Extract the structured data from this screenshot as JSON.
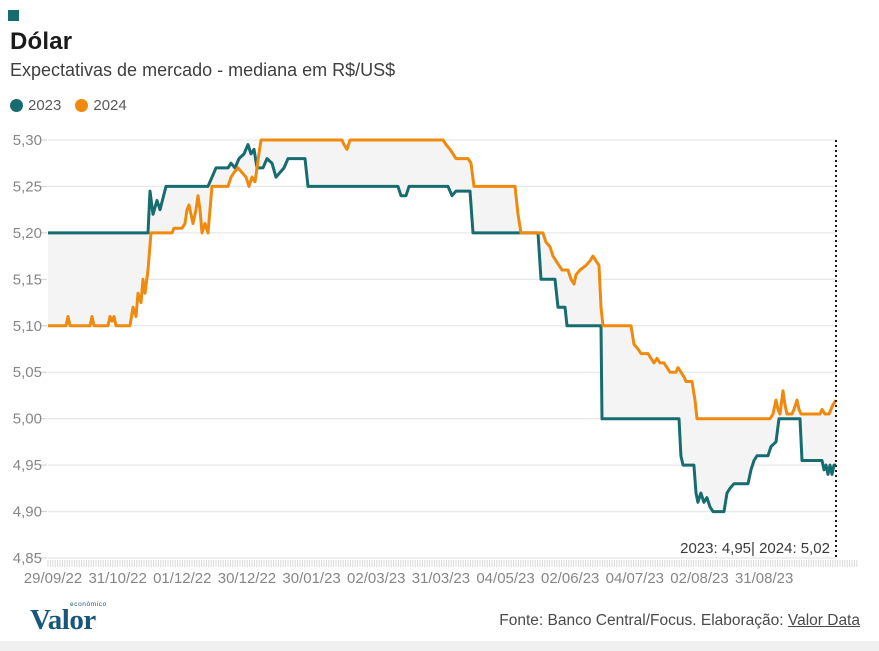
{
  "header": {
    "title": "Dólar",
    "subtitle": "Expectativas de mercado - mediana em R$/US$"
  },
  "legend": [
    {
      "label": "2023",
      "color": "#176C70"
    },
    {
      "label": "2024",
      "color": "#EF8A0E"
    }
  ],
  "footer": {
    "logo": "Valor",
    "logo_small": "econômico",
    "source_text": "Fonte: Banco Central/Focus. Elaboração: ",
    "source_link": "Valor Data"
  },
  "chart_data": {
    "type": "line",
    "title": "Dólar - Expectativas de mercado - mediana em R$/US$",
    "xlabel": "",
    "ylabel": "",
    "ylim": [
      4.85,
      5.3
    ],
    "grid": "horizontal",
    "legend_position": "top-left",
    "band_fill": "#f4f4f4",
    "annotation": "2023: 4,95|  2024: 5,02",
    "end_values": {
      "2023": 4.95,
      "2024": 5.02
    },
    "x_unit": "fraction of x-axis, 0 = 29/09/22, 1 = latest data point (dotted marker)",
    "x_tick_labels": [
      "29/09/22",
      "31/10/22",
      "01/12/22",
      "30/12/22",
      "30/01/23",
      "02/03/23",
      "31/03/23",
      "04/05/23",
      "02/06/23",
      "04/07/23",
      "02/08/23",
      "31/08/23"
    ],
    "y_ticks": {
      "values": [
        5.3,
        5.25,
        5.2,
        5.15,
        5.1,
        5.05,
        5.0,
        4.95,
        4.9,
        4.85
      ],
      "labels": [
        "5,30",
        "5,25",
        "5,20",
        "5,15",
        "5,10",
        "5,05",
        "5,00",
        "4,95",
        "4,90",
        "4,85"
      ]
    },
    "series": [
      {
        "name": "2023",
        "color": "#176C70",
        "points": [
          [
            0,
            5.2
          ],
          [
            0.1269,
            5.2
          ],
          [
            0.1294,
            5.245
          ],
          [
            0.1332,
            5.22
          ],
          [
            0.1383,
            5.235
          ],
          [
            0.1421,
            5.225
          ],
          [
            0.1497,
            5.25
          ],
          [
            0.203,
            5.25
          ],
          [
            0.2081,
            5.26
          ],
          [
            0.2132,
            5.27
          ],
          [
            0.2284,
            5.27
          ],
          [
            0.2322,
            5.275
          ],
          [
            0.2373,
            5.27
          ],
          [
            0.2424,
            5.28
          ],
          [
            0.2487,
            5.285
          ],
          [
            0.2538,
            5.295
          ],
          [
            0.2576,
            5.285
          ],
          [
            0.2614,
            5.29
          ],
          [
            0.2652,
            5.27
          ],
          [
            0.2728,
            5.27
          ],
          [
            0.2779,
            5.28
          ],
          [
            0.2843,
            5.275
          ],
          [
            0.2893,
            5.26
          ],
          [
            0.2944,
            5.265
          ],
          [
            0.2995,
            5.27
          ],
          [
            0.3046,
            5.28
          ],
          [
            0.3261,
            5.28
          ],
          [
            0.3299,
            5.25
          ],
          [
            0.4442,
            5.25
          ],
          [
            0.448,
            5.24
          ],
          [
            0.4543,
            5.24
          ],
          [
            0.4581,
            5.25
          ],
          [
            0.5076,
            5.25
          ],
          [
            0.5127,
            5.24
          ],
          [
            0.5178,
            5.245
          ],
          [
            0.5355,
            5.245
          ],
          [
            0.5393,
            5.2
          ],
          [
            0.6218,
            5.2
          ],
          [
            0.6256,
            5.15
          ],
          [
            0.6434,
            5.15
          ],
          [
            0.6472,
            5.12
          ],
          [
            0.6561,
            5.12
          ],
          [
            0.6586,
            5.1
          ],
          [
            0.7018,
            5.1
          ],
          [
            0.703,
            5.0
          ],
          [
            0.8007,
            5.0
          ],
          [
            0.8032,
            4.96
          ],
          [
            0.8058,
            4.95
          ],
          [
            0.8197,
            4.95
          ],
          [
            0.8223,
            4.92
          ],
          [
            0.8248,
            4.91
          ],
          [
            0.8286,
            4.92
          ],
          [
            0.8324,
            4.91
          ],
          [
            0.8362,
            4.915
          ],
          [
            0.8401,
            4.905
          ],
          [
            0.8439,
            4.9
          ],
          [
            0.8579,
            4.9
          ],
          [
            0.8617,
            4.92
          ],
          [
            0.8655,
            4.925
          ],
          [
            0.8706,
            4.93
          ],
          [
            0.8883,
            4.93
          ],
          [
            0.8921,
            4.945
          ],
          [
            0.8959,
            4.955
          ],
          [
            0.8997,
            4.96
          ],
          [
            0.9137,
            4.96
          ],
          [
            0.9175,
            4.97
          ],
          [
            0.9239,
            4.975
          ],
          [
            0.9277,
            5.0
          ],
          [
            0.9543,
            5.0
          ],
          [
            0.9569,
            4.955
          ],
          [
            0.9822,
            4.955
          ],
          [
            0.9848,
            4.945
          ],
          [
            0.9873,
            4.95
          ],
          [
            0.9898,
            4.94
          ],
          [
            0.9924,
            4.95
          ],
          [
            0.9949,
            4.94
          ],
          [
            0.9975,
            4.95
          ],
          [
            1,
            4.95
          ]
        ]
      },
      {
        "name": "2024",
        "color": "#EF8A0E",
        "points": [
          [
            0,
            5.1
          ],
          [
            0.0228,
            5.1
          ],
          [
            0.0254,
            5.11
          ],
          [
            0.0279,
            5.1
          ],
          [
            0.0533,
            5.1
          ],
          [
            0.0558,
            5.11
          ],
          [
            0.0584,
            5.1
          ],
          [
            0.0761,
            5.1
          ],
          [
            0.0787,
            5.11
          ],
          [
            0.0812,
            5.105
          ],
          [
            0.0837,
            5.11
          ],
          [
            0.0863,
            5.1
          ],
          [
            0.1041,
            5.1
          ],
          [
            0.1079,
            5.12
          ],
          [
            0.1117,
            5.11
          ],
          [
            0.1142,
            5.135
          ],
          [
            0.118,
            5.125
          ],
          [
            0.1206,
            5.15
          ],
          [
            0.1231,
            5.135
          ],
          [
            0.1269,
            5.16
          ],
          [
            0.1307,
            5.2
          ],
          [
            0.1574,
            5.2
          ],
          [
            0.1599,
            5.205
          ],
          [
            0.1701,
            5.205
          ],
          [
            0.1739,
            5.21
          ],
          [
            0.1764,
            5.225
          ],
          [
            0.1789,
            5.23
          ],
          [
            0.1815,
            5.22
          ],
          [
            0.184,
            5.21
          ],
          [
            0.1878,
            5.225
          ],
          [
            0.1904,
            5.24
          ],
          [
            0.1929,
            5.225
          ],
          [
            0.1954,
            5.2
          ],
          [
            0.1992,
            5.21
          ],
          [
            0.203,
            5.2
          ],
          [
            0.2081,
            5.25
          ],
          [
            0.2284,
            5.25
          ],
          [
            0.2322,
            5.26
          ],
          [
            0.236,
            5.265
          ],
          [
            0.2411,
            5.27
          ],
          [
            0.2462,
            5.265
          ],
          [
            0.2513,
            5.26
          ],
          [
            0.2551,
            5.25
          ],
          [
            0.2589,
            5.26
          ],
          [
            0.2627,
            5.255
          ],
          [
            0.2652,
            5.27
          ],
          [
            0.2677,
            5.285
          ],
          [
            0.2703,
            5.3
          ],
          [
            0.3731,
            5.3
          ],
          [
            0.3756,
            5.295
          ],
          [
            0.3794,
            5.29
          ],
          [
            0.3832,
            5.3
          ],
          [
            0.5013,
            5.3
          ],
          [
            0.5051,
            5.295
          ],
          [
            0.5102,
            5.29
          ],
          [
            0.514,
            5.285
          ],
          [
            0.5178,
            5.28
          ],
          [
            0.533,
            5.28
          ],
          [
            0.5368,
            5.275
          ],
          [
            0.5406,
            5.25
          ],
          [
            0.5926,
            5.25
          ],
          [
            0.5964,
            5.22
          ],
          [
            0.6002,
            5.2
          ],
          [
            0.6281,
            5.2
          ],
          [
            0.632,
            5.19
          ],
          [
            0.6371,
            5.185
          ],
          [
            0.6409,
            5.175
          ],
          [
            0.6447,
            5.17
          ],
          [
            0.6485,
            5.165
          ],
          [
            0.6523,
            5.16
          ],
          [
            0.6599,
            5.16
          ],
          [
            0.6637,
            5.15
          ],
          [
            0.6675,
            5.145
          ],
          [
            0.6701,
            5.155
          ],
          [
            0.6751,
            5.16
          ],
          [
            0.6827,
            5.165
          ],
          [
            0.6878,
            5.17
          ],
          [
            0.6916,
            5.175
          ],
          [
            0.6954,
            5.17
          ],
          [
            0.6992,
            5.165
          ],
          [
            0.7018,
            5.12
          ],
          [
            0.7043,
            5.1
          ],
          [
            0.7399,
            5.1
          ],
          [
            0.7437,
            5.08
          ],
          [
            0.7487,
            5.075
          ],
          [
            0.7525,
            5.07
          ],
          [
            0.7614,
            5.07
          ],
          [
            0.7652,
            5.065
          ],
          [
            0.769,
            5.06
          ],
          [
            0.7728,
            5.065
          ],
          [
            0.7766,
            5.06
          ],
          [
            0.7817,
            5.06
          ],
          [
            0.7855,
            5.055
          ],
          [
            0.7893,
            5.05
          ],
          [
            0.797,
            5.05
          ],
          [
            0.7995,
            5.055
          ],
          [
            0.8033,
            5.05
          ],
          [
            0.8071,
            5.045
          ],
          [
            0.8096,
            5.04
          ],
          [
            0.8173,
            5.04
          ],
          [
            0.8211,
            5.02
          ],
          [
            0.8236,
            5.0
          ],
          [
            0.9162,
            5.0
          ],
          [
            0.92,
            5.005
          ],
          [
            0.9239,
            5.02
          ],
          [
            0.9264,
            5.01
          ],
          [
            0.9289,
            5.005
          ],
          [
            0.9327,
            5.03
          ],
          [
            0.9353,
            5.015
          ],
          [
            0.9378,
            5.005
          ],
          [
            0.9442,
            5.005
          ],
          [
            0.9467,
            5.01
          ],
          [
            0.9505,
            5.02
          ],
          [
            0.953,
            5.01
          ],
          [
            0.9556,
            5.005
          ],
          [
            0.9797,
            5.005
          ],
          [
            0.9822,
            5.01
          ],
          [
            0.986,
            5.005
          ],
          [
            0.9911,
            5.005
          ],
          [
            0.9936,
            5.01
          ],
          [
            0.9962,
            5.015
          ],
          [
            1,
            5.02
          ]
        ]
      }
    ]
  }
}
